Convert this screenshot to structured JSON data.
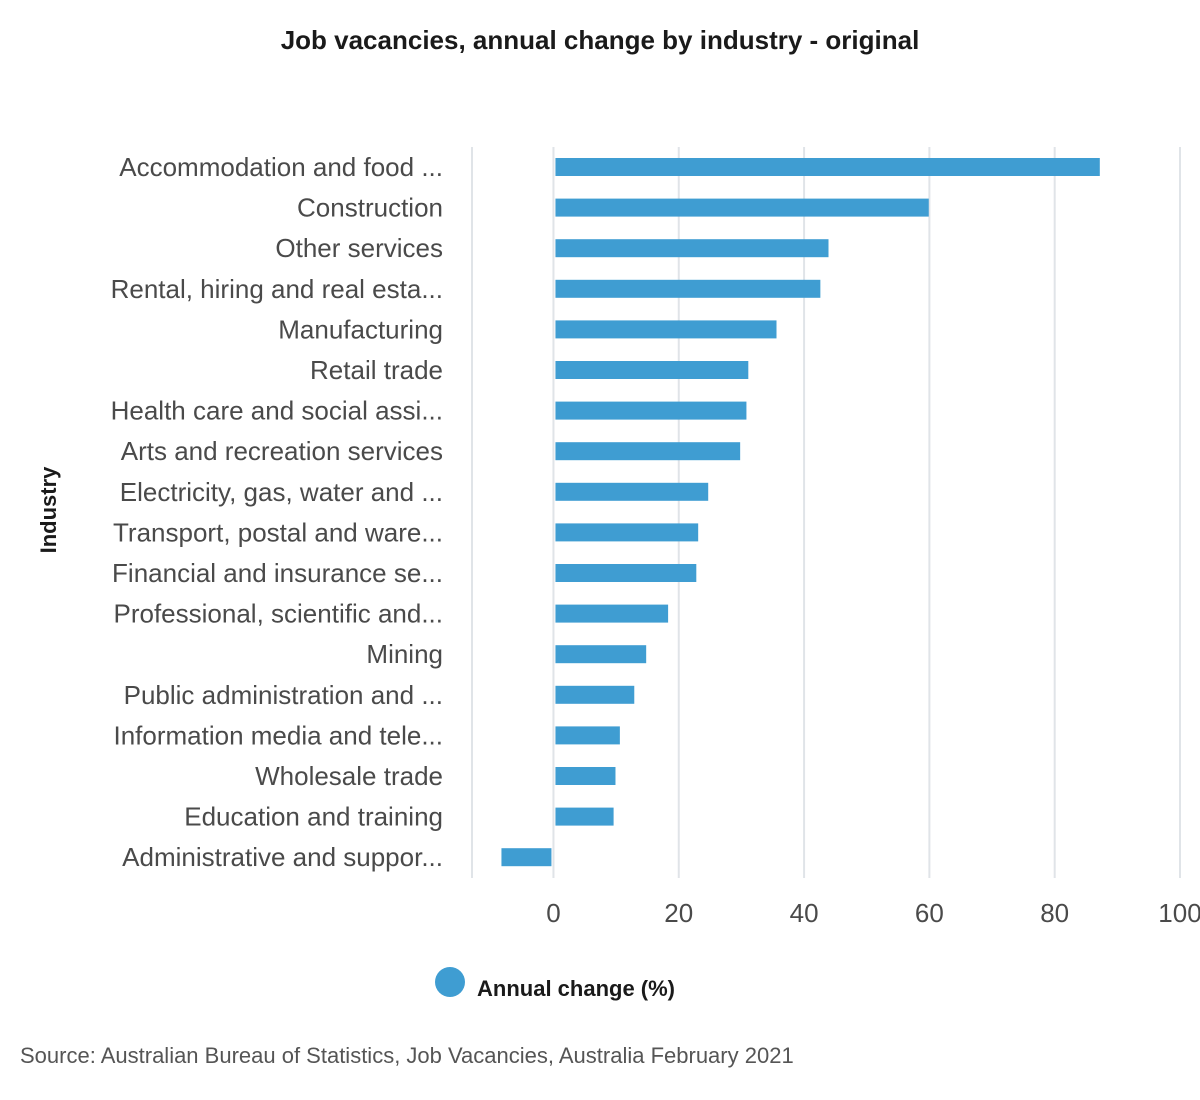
{
  "chart_data": {
    "type": "bar",
    "orientation": "horizontal",
    "title": "Job vacancies, annual change by industry - original",
    "xlabel": "",
    "ylabel": "Industry",
    "xlim": [
      -13,
      100
    ],
    "xticks": [
      0,
      20,
      40,
      60,
      80,
      100
    ],
    "grid": true,
    "legend_position": "bottom-center",
    "categories": [
      "Accommodation and food ...",
      "Construction",
      "Other services",
      "Rental, hiring and real esta...",
      "Manufacturing",
      "Retail trade",
      "Health care and social assi...",
      "Arts and recreation services",
      "Electricity, gas, water and ...",
      "Transport, postal and ware...",
      "Financial and insurance se...",
      "Professional, scientific and...",
      "Mining",
      "Public administration and ...",
      "Information media and tele...",
      "Wholesale trade",
      "Education and training",
      "Administrative and suppor..."
    ],
    "series": [
      {
        "name": "Annual change (%)",
        "color": "#3f9dd2",
        "values": [
          87.2,
          59.9,
          43.9,
          42.6,
          35.6,
          31.1,
          30.8,
          29.8,
          24.7,
          23.1,
          22.8,
          18.3,
          14.8,
          12.9,
          10.6,
          9.9,
          9.6,
          -8.3
        ]
      }
    ]
  },
  "source": "Source: Australian Bureau of Statistics, Job Vacancies, Australia February 2021"
}
